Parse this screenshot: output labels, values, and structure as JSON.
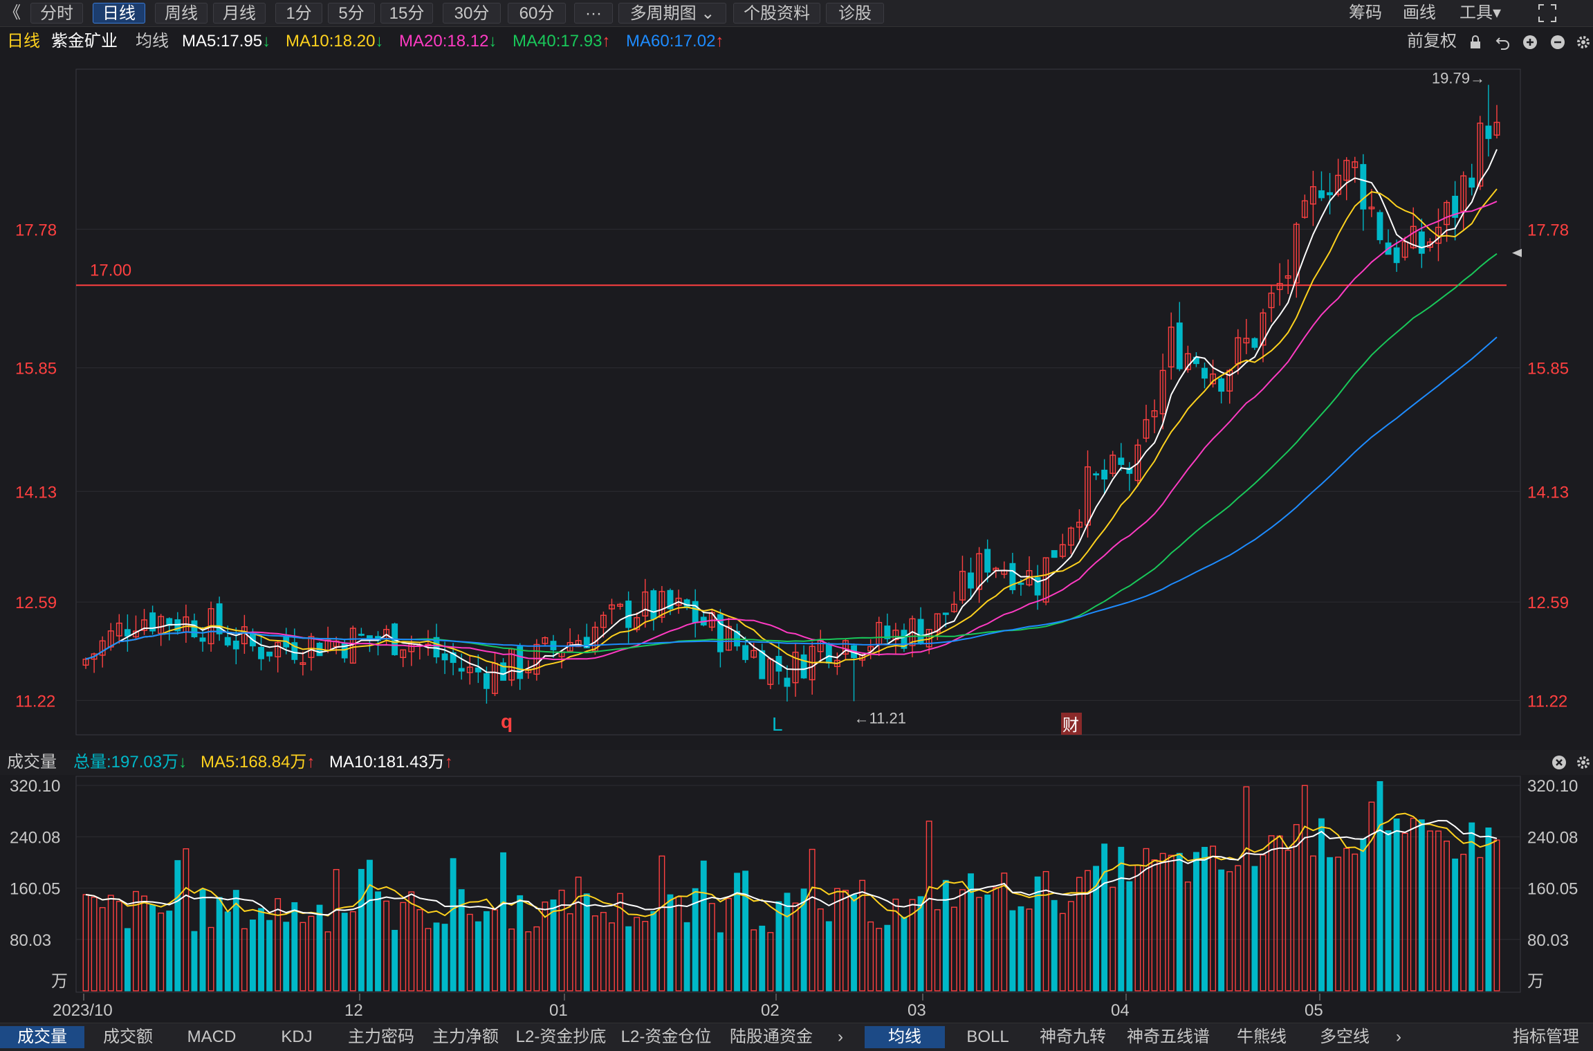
{
  "toolbar": {
    "back": "《",
    "tabs": [
      "分时",
      "日线",
      "周线",
      "月线",
      "1分",
      "5分",
      "15分",
      "30分",
      "60分",
      "···",
      "多周期图 ⌄",
      "个股资料",
      "诊股"
    ],
    "right": [
      "筹码",
      "画线",
      "工具▾"
    ]
  },
  "info": {
    "period": "日线",
    "name": "紫金矿业",
    "ma_label": "均线",
    "ma5": "MA5:17.95",
    "ma10": "MA10:18.20",
    "ma20": "MA20:18.12",
    "ma40": "MA40:17.93",
    "ma60": "MA60:17.02",
    "adjust": "前复权"
  },
  "vol_info": {
    "title": "成交量",
    "total": "总量:197.03万",
    "ma5": "MA5:168.84万",
    "ma10": "MA10:181.43万"
  },
  "bottom_tabs_left": [
    "成交量",
    "成交额",
    "MACD",
    "KDJ",
    "主力密码",
    "主力净额",
    "L2-资金抄底",
    "L2-资金仓位",
    "陆股通资金"
  ],
  "bottom_tabs_right": [
    "均线",
    "BOLL",
    "神奇九转",
    "神奇五线谱",
    "牛熊线",
    "多空线"
  ],
  "bottom_manage": "指标管理",
  "colors": {
    "up": "#ff4040",
    "down": "#00b8c8",
    "ma5": "#ffffff",
    "ma10": "#ffd21e",
    "ma20": "#ff3bc3",
    "ma40": "#19c85a",
    "ma60": "#1e8cff",
    "bg": "#1b1b1f"
  },
  "chart_data": {
    "type": "candlestick",
    "price_axis_ticks": [
      11.22,
      12.59,
      14.13,
      15.85,
      17.78
    ],
    "price_axis_labels": [
      "11.22",
      "12.59",
      "14.13",
      "15.85",
      "17.78"
    ],
    "price_range": [
      10.8,
      19.95
    ],
    "hline_label": "17.00",
    "hline_value": 17.0,
    "max_label": "19.79→",
    "max_value": 19.79,
    "min_label": "←11.21",
    "min_value": 11.21,
    "markers": [
      "q",
      "L",
      "财"
    ],
    "x_axis_labels": [
      "2023/10",
      "12",
      "01",
      "02",
      "03",
      "04",
      "05"
    ],
    "volume_axis_ticks": [
      80.03,
      160.05,
      240.08,
      320.1
    ],
    "volume_axis_labels": [
      "80.03",
      "160.05",
      "240.08",
      "320.10"
    ],
    "volume_unit": "万",
    "volume_range": [
      0,
      330
    ],
    "candle_count": 170
  }
}
